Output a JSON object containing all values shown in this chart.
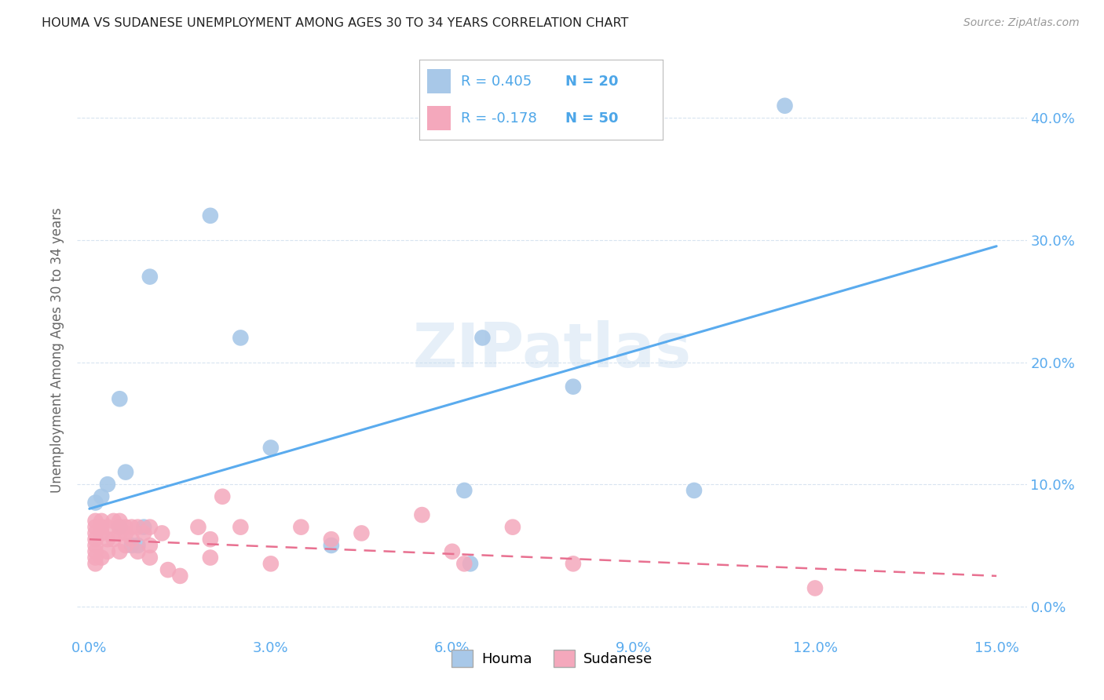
{
  "title": "HOUMA VS SUDANESE UNEMPLOYMENT AMONG AGES 30 TO 34 YEARS CORRELATION CHART",
  "source": "Source: ZipAtlas.com",
  "ylabel": "Unemployment Among Ages 30 to 34 years",
  "xlim": [
    -0.002,
    0.155
  ],
  "ylim": [
    -0.025,
    0.445
  ],
  "xticks": [
    0.0,
    0.03,
    0.06,
    0.09,
    0.12,
    0.15
  ],
  "yticks": [
    0.0,
    0.1,
    0.2,
    0.3,
    0.4
  ],
  "houma_R": 0.405,
  "houma_N": 20,
  "sudanese_R": -0.178,
  "sudanese_N": 50,
  "houma_color": "#a8c8e8",
  "sudanese_color": "#f4a8bc",
  "houma_line_color": "#5aabee",
  "sudanese_line_color": "#e87090",
  "grid_color": "#d8e4f0",
  "tick_color": "#5aabee",
  "watermark": "ZIPatlas",
  "houma_x": [
    0.001,
    0.002,
    0.003,
    0.005,
    0.005,
    0.006,
    0.007,
    0.008,
    0.009,
    0.01,
    0.02,
    0.025,
    0.03,
    0.04,
    0.062,
    0.063,
    0.065,
    0.08,
    0.1,
    0.115
  ],
  "houma_y": [
    0.085,
    0.09,
    0.1,
    0.17,
    0.065,
    0.11,
    0.05,
    0.05,
    0.065,
    0.27,
    0.32,
    0.22,
    0.13,
    0.05,
    0.095,
    0.035,
    0.22,
    0.18,
    0.095,
    0.41
  ],
  "sudanese_x": [
    0.001,
    0.001,
    0.001,
    0.001,
    0.001,
    0.001,
    0.001,
    0.001,
    0.002,
    0.002,
    0.002,
    0.002,
    0.003,
    0.003,
    0.003,
    0.004,
    0.004,
    0.005,
    0.005,
    0.005,
    0.005,
    0.006,
    0.006,
    0.006,
    0.007,
    0.007,
    0.008,
    0.008,
    0.009,
    0.01,
    0.01,
    0.01,
    0.012,
    0.013,
    0.015,
    0.018,
    0.02,
    0.02,
    0.022,
    0.025,
    0.03,
    0.035,
    0.04,
    0.045,
    0.055,
    0.06,
    0.062,
    0.07,
    0.08,
    0.12
  ],
  "sudanese_y": [
    0.07,
    0.065,
    0.06,
    0.055,
    0.05,
    0.045,
    0.04,
    0.035,
    0.07,
    0.065,
    0.06,
    0.04,
    0.065,
    0.055,
    0.045,
    0.07,
    0.055,
    0.07,
    0.065,
    0.06,
    0.045,
    0.065,
    0.06,
    0.05,
    0.065,
    0.055,
    0.065,
    0.045,
    0.06,
    0.065,
    0.05,
    0.04,
    0.06,
    0.03,
    0.025,
    0.065,
    0.055,
    0.04,
    0.09,
    0.065,
    0.035,
    0.065,
    0.055,
    0.06,
    0.075,
    0.045,
    0.035,
    0.065,
    0.035,
    0.015
  ],
  "houma_line_x": [
    0.0,
    0.15
  ],
  "houma_line_y": [
    0.08,
    0.295
  ],
  "sudanese_line_x": [
    0.0,
    0.15
  ],
  "sudanese_line_y": [
    0.055,
    0.025
  ]
}
